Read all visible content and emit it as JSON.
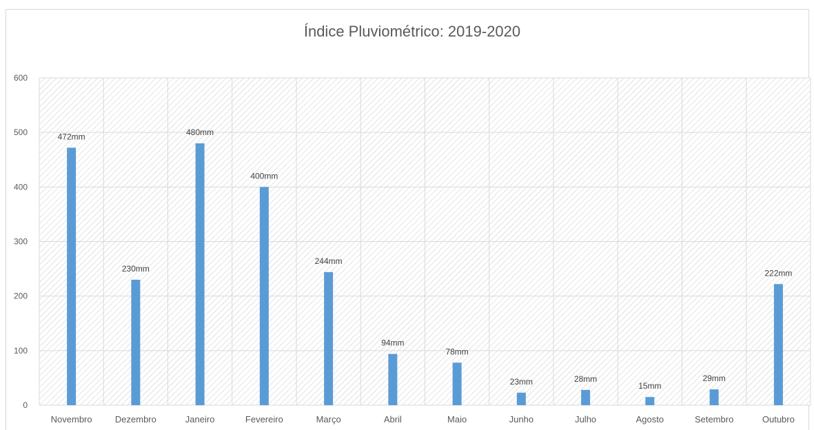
{
  "chart_data": {
    "type": "bar",
    "title": "Índice Pluviométrico: 2019-2020",
    "categories": [
      "Novembro",
      "Dezembro",
      "Janeiro",
      "Fevereiro",
      "Março",
      "Abril",
      "Maio",
      "Junho",
      "Julho",
      "Agosto",
      "Setembro",
      "Outubro"
    ],
    "values": [
      472,
      230,
      480,
      400,
      244,
      94,
      78,
      23,
      28,
      15,
      29,
      222
    ],
    "data_labels": [
      "472mm",
      "230mm",
      "480mm",
      "400mm",
      "244mm",
      "94mm",
      "78mm",
      "23mm",
      "28mm",
      "15mm",
      "29mm",
      "222mm"
    ],
    "yticks": [
      "0",
      "100",
      "200",
      "300",
      "400",
      "500",
      "600"
    ],
    "ylim": [
      0,
      600
    ],
    "xlabel": "",
    "ylabel": "",
    "grid": true,
    "legend": "none",
    "colors": {
      "bar": "#5b9bd5",
      "grid": "#d9d9d9",
      "hatch": "#c8c8c8",
      "text": "#595959"
    }
  }
}
